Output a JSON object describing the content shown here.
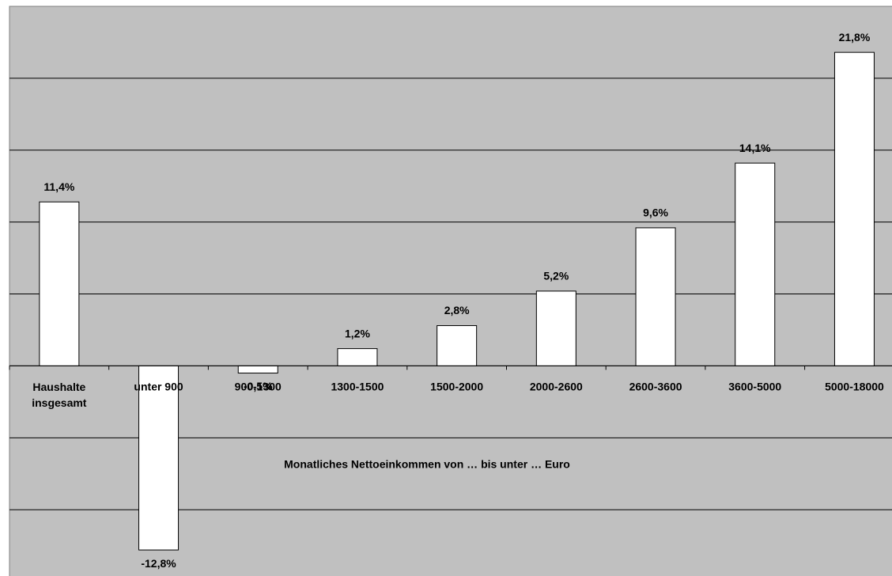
{
  "chart_data": {
    "type": "bar",
    "x_label": "Monatliches Nettoeinkommen von … bis unter … Euro",
    "categories": [
      "Haushalte insgesamt",
      "unter 900",
      "900-1300",
      "1300-1500",
      "1500-2000",
      "2000-2600",
      "2600-3600",
      "3600-5000",
      "5000-18000"
    ],
    "values": [
      11.4,
      -12.8,
      -0.5,
      1.2,
      2.8,
      5.2,
      9.6,
      14.1,
      21.8
    ],
    "value_labels": [
      "11,4%",
      "-12,8%",
      "-0,5%",
      "1,2%",
      "2,8%",
      "5,2%",
      "9,6%",
      "14,1%",
      "21,8%"
    ],
    "color": "#ffffff",
    "background": "#c0c0c0",
    "ylim": [
      -14.5,
      25
    ],
    "yticks": [
      -10,
      -5,
      0,
      5,
      10,
      15,
      20
    ],
    "grid": true
  }
}
